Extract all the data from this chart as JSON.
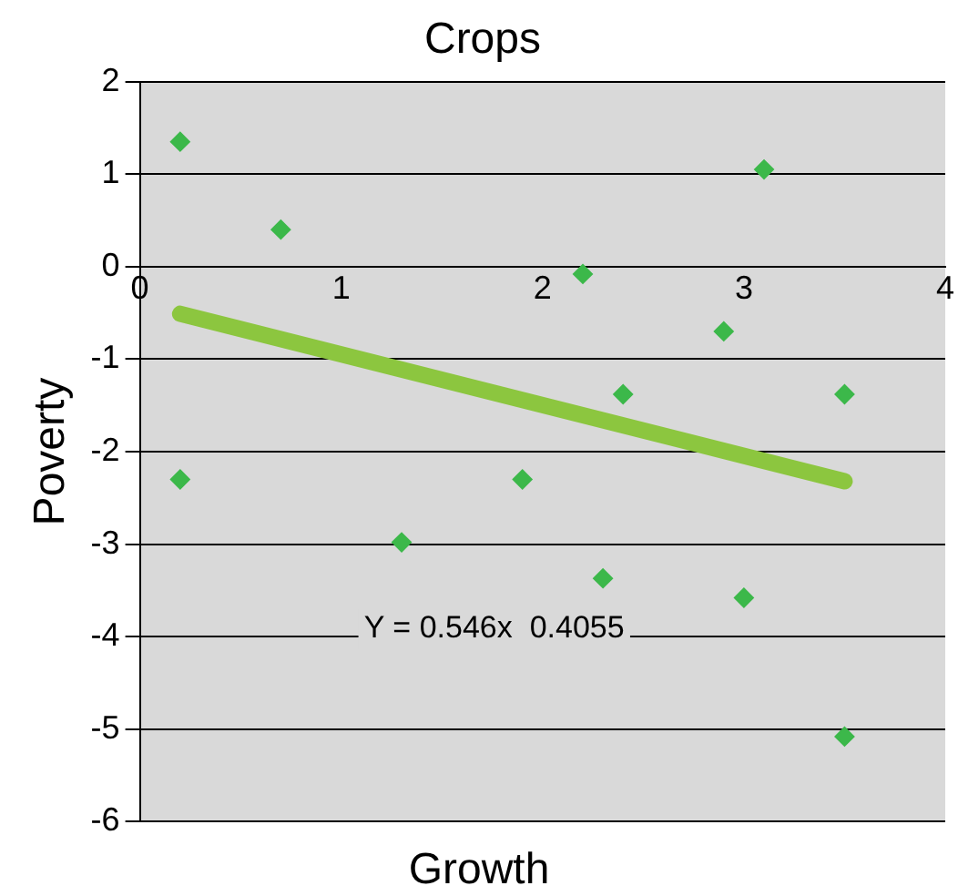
{
  "chart_data": {
    "type": "scatter",
    "title": "Crops",
    "xlabel": "Growth",
    "ylabel": "Poverty",
    "xlim": [
      0,
      4
    ],
    "xticks": [
      0,
      1,
      2,
      3,
      4
    ],
    "ylim": [
      -6,
      2
    ],
    "yticks": [
      -6,
      -5,
      -4,
      -3,
      -2,
      -1,
      0,
      1,
      2
    ],
    "grid": "y",
    "legend": false,
    "series": [
      {
        "color": "#3cb84a",
        "marker": "diamond",
        "x": [
          0.2,
          0.7,
          0.2,
          1.3,
          1.9,
          2.2,
          2.4,
          2.3,
          2.9,
          3.1,
          3.0,
          3.5,
          3.5
        ],
        "values": [
          1.35,
          0.4,
          -2.3,
          -2.98,
          -2.3,
          -0.08,
          -1.38,
          -3.37,
          -0.7,
          1.05,
          -3.58,
          -1.38,
          -5.08
        ]
      },
      {
        "type": "line",
        "marker": "none",
        "color": "#8cc63f",
        "x": [
          0.2,
          3.5
        ],
        "values": [
          -0.51,
          -2.32
        ]
      }
    ],
    "annotations": [
      "Y = 0.546x  0.4055"
    ]
  }
}
